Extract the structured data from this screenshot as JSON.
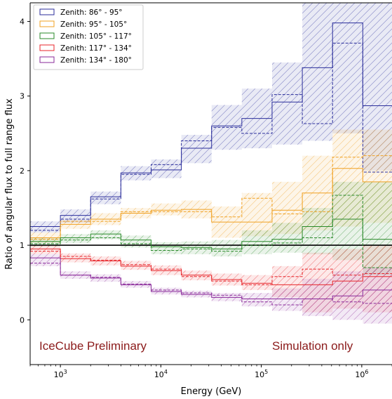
{
  "chart_data": {
    "type": "step-line",
    "xlabel": "Energy (GeV)",
    "ylabel": "Ratio of angular flux to full range flux",
    "xscale": "log",
    "xlim": [
      500,
      2000000
    ],
    "ylim": [
      -0.6,
      4.25
    ],
    "x_ticks": [
      {
        "value": 1000,
        "base": "10",
        "exp": "3"
      },
      {
        "value": 10000,
        "base": "10",
        "exp": "4"
      },
      {
        "value": 100000,
        "base": "10",
        "exp": "5"
      },
      {
        "value": 1000000,
        "base": "10",
        "exp": "6"
      }
    ],
    "y_ticks": [
      {
        "value": 0,
        "label": "0"
      },
      {
        "value": 1,
        "label": "1"
      },
      {
        "value": 2,
        "label": "2"
      },
      {
        "value": 3,
        "label": "3"
      },
      {
        "value": 4,
        "label": "4"
      }
    ],
    "bin_edges": [
      500,
      1000,
      2000,
      4000,
      8000,
      16000,
      32000,
      64000,
      128000,
      256000,
      512000,
      1024000,
      2000000
    ],
    "reference_line": 1,
    "legend_position": "top-left",
    "series": [
      {
        "name": "Zenith: 86° - 95°",
        "color": "#2b2e9b",
        "solid": [
          1.25,
          1.4,
          1.65,
          1.97,
          2.01,
          2.3,
          2.6,
          2.7,
          2.92,
          3.38,
          3.98,
          2.87
        ],
        "dashed": [
          1.2,
          1.35,
          1.62,
          1.95,
          2.08,
          2.4,
          2.58,
          2.5,
          3.02,
          2.63,
          3.71,
          1.98
        ],
        "band_lo": [
          1.17,
          1.3,
          1.55,
          1.87,
          1.9,
          2.1,
          2.28,
          2.3,
          2.35,
          2.4,
          2.5,
          2.0
        ],
        "band_hi": [
          1.32,
          1.48,
          1.72,
          2.06,
          2.15,
          2.48,
          2.88,
          3.1,
          3.45,
          4.45,
          4.45,
          4.45
        ]
      },
      {
        "name": "Zenith: 95° - 105°",
        "color": "#f0a020",
        "solid": [
          1.1,
          1.28,
          1.35,
          1.43,
          1.47,
          1.48,
          1.31,
          1.31,
          1.47,
          1.7,
          2.03,
          1.85
        ],
        "dashed": [
          1.08,
          1.32,
          1.32,
          1.45,
          1.45,
          1.45,
          1.38,
          1.63,
          1.42,
          1.45,
          2.18,
          2.2
        ],
        "band_lo": [
          1.03,
          1.22,
          1.27,
          1.36,
          1.4,
          1.36,
          1.1,
          1.12,
          1.15,
          1.2,
          1.25,
          1.3
        ],
        "band_hi": [
          1.17,
          1.34,
          1.43,
          1.5,
          1.56,
          1.6,
          1.52,
          1.7,
          1.85,
          2.2,
          2.55,
          2.55
        ]
      },
      {
        "name": "Zenith: 105° - 117°",
        "color": "#2a8a2a",
        "solid": [
          1.05,
          1.1,
          1.15,
          1.07,
          0.98,
          0.97,
          0.95,
          1.05,
          1.08,
          1.25,
          1.35,
          1.08
        ],
        "dashed": [
          1.02,
          1.07,
          1.1,
          1.02,
          0.93,
          0.95,
          0.92,
          1.0,
          1.03,
          1.1,
          1.67,
          0.7
        ],
        "band_lo": [
          0.98,
          1.03,
          1.08,
          0.97,
          0.88,
          0.88,
          0.85,
          0.88,
          0.9,
          0.88,
          0.8,
          0.6
        ],
        "band_hi": [
          1.1,
          1.15,
          1.2,
          1.13,
          1.04,
          1.05,
          1.07,
          1.2,
          1.3,
          1.5,
          1.85,
          1.85
        ]
      },
      {
        "name": "Zenith: 117° - 134°",
        "color": "#e8262b",
        "solid": [
          0.95,
          0.82,
          0.79,
          0.72,
          0.66,
          0.6,
          0.54,
          0.49,
          0.47,
          0.47,
          0.52,
          0.58
        ],
        "dashed": [
          0.92,
          0.85,
          0.8,
          0.74,
          0.68,
          0.58,
          0.52,
          0.47,
          0.58,
          0.68,
          0.6,
          0.62
        ],
        "band_lo": [
          0.88,
          0.77,
          0.73,
          0.67,
          0.6,
          0.53,
          0.46,
          0.4,
          0.3,
          0.1,
          0.15,
          0.1
        ],
        "band_hi": [
          1.0,
          0.89,
          0.85,
          0.79,
          0.73,
          0.66,
          0.62,
          0.6,
          0.72,
          0.9,
          0.95,
          1.0
        ]
      },
      {
        "name": "Zenith: 134° - 180°",
        "color": "#8a2a9a",
        "solid": [
          0.83,
          0.6,
          0.56,
          0.47,
          0.38,
          0.34,
          0.3,
          0.28,
          0.28,
          0.28,
          0.32,
          0.4
        ],
        "dashed": [
          0.76,
          0.6,
          0.57,
          0.48,
          0.4,
          0.36,
          0.33,
          0.24,
          0.2,
          0.28,
          0.24,
          0.22
        ],
        "band_lo": [
          0.72,
          0.55,
          0.51,
          0.43,
          0.34,
          0.3,
          0.25,
          0.18,
          0.12,
          0.05,
          0.0,
          -0.05
        ],
        "band_hi": [
          0.88,
          0.65,
          0.61,
          0.52,
          0.43,
          0.39,
          0.36,
          0.36,
          0.42,
          0.55,
          0.65,
          0.7
        ]
      }
    ],
    "annotations": [
      {
        "text": "IceCube Preliminary",
        "color": "#8b1a1a"
      },
      {
        "text": "Simulation only",
        "color": "#8b1a1a"
      }
    ]
  }
}
